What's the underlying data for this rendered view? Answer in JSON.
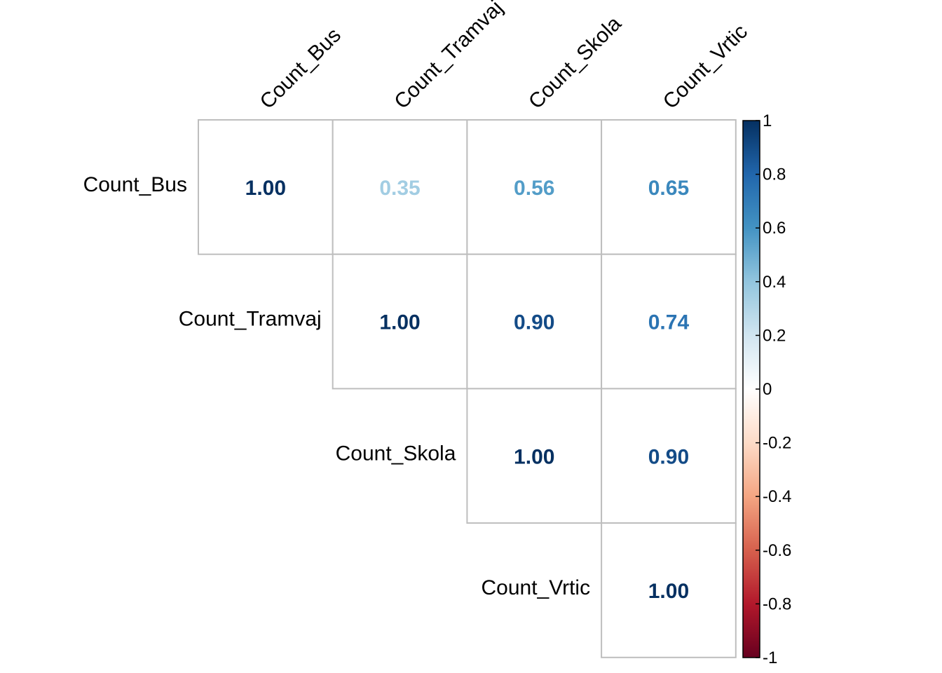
{
  "chart_data": {
    "type": "heatmap",
    "variables": [
      "Count_Bus",
      "Count_Tramvaj",
      "Count_Skola",
      "Count_Vrtic"
    ],
    "matrix_part": "upper",
    "cells": [
      {
        "row": 0,
        "col": 0,
        "value": 1.0,
        "label": "1.00"
      },
      {
        "row": 0,
        "col": 1,
        "value": 0.35,
        "label": "0.35"
      },
      {
        "row": 0,
        "col": 2,
        "value": 0.56,
        "label": "0.56"
      },
      {
        "row": 0,
        "col": 3,
        "value": 0.65,
        "label": "0.65"
      },
      {
        "row": 1,
        "col": 1,
        "value": 1.0,
        "label": "1.00"
      },
      {
        "row": 1,
        "col": 2,
        "value": 0.9,
        "label": "0.90"
      },
      {
        "row": 1,
        "col": 3,
        "value": 0.74,
        "label": "0.74"
      },
      {
        "row": 2,
        "col": 2,
        "value": 1.0,
        "label": "1.00"
      },
      {
        "row": 2,
        "col": 3,
        "value": 0.9,
        "label": "0.90"
      },
      {
        "row": 3,
        "col": 3,
        "value": 1.0,
        "label": "1.00"
      }
    ],
    "colorbar": {
      "range": [
        -1,
        1
      ],
      "ticks": [
        "1",
        "0.8",
        "0.6",
        "0.4",
        "0.2",
        "0",
        "-0.2",
        "-0.4",
        "-0.6",
        "-0.8",
        "-1"
      ],
      "colors": [
        "#67001f",
        "#b2182b",
        "#d6604d",
        "#f4a582",
        "#fddbc7",
        "#ffffff",
        "#d1e5f0",
        "#92c5de",
        "#4393c3",
        "#2166ac",
        "#053061"
      ]
    },
    "label_color": "#000000",
    "grid_color": "#bebebe"
  }
}
